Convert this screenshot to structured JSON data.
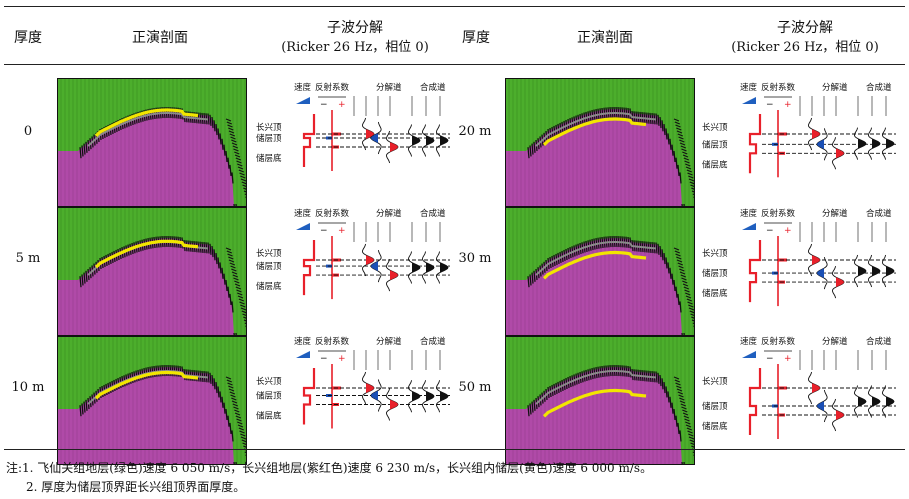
{
  "header": {
    "thickness": "厚度",
    "section": "正演剖面",
    "wavelet_title": "子波分解",
    "wavelet_sub": "(Ricker 26 Hz，相位 0)"
  },
  "diagram_labels": {
    "velocity": "速度",
    "reflection": "反射系数",
    "decomposed": "分解道",
    "synthetic": "合成道",
    "minus": "−",
    "plus": "+",
    "top_cx": "长兴顶",
    "top_res": "储层顶",
    "bot_res": "储层底"
  },
  "left_rows": [
    {
      "thickness": "0"
    },
    {
      "thickness": "5 m"
    },
    {
      "thickness": "10 m"
    }
  ],
  "right_rows": [
    {
      "thickness": "20 m"
    },
    {
      "thickness": "30 m"
    },
    {
      "thickness": "50 m"
    }
  ],
  "notes": {
    "note1": "注:1. 飞仙关组地层(绿色)速度 6 050 m/s，长兴组地层(紫红色)速度 6 230 m/s，长兴组内储层(黄色)速度 6 000 m/s。",
    "note2": "2. 厚度为储层顶界距长兴组顶界面厚度。"
  },
  "colors": {
    "green": "#4cae2c",
    "magenta": "#b04aa8",
    "yellow": "#f2e600",
    "red": "#e8202a",
    "blue": "#1a4fb5"
  }
}
